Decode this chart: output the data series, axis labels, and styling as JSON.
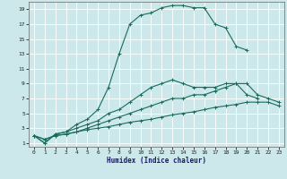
{
  "xlabel": "Humidex (Indice chaleur)",
  "bg_color": "#cce8ea",
  "line_color": "#1a6b5a",
  "grid_color": "#ffffff",
  "xlim": [
    -0.5,
    23.5
  ],
  "ylim": [
    0.5,
    20
  ],
  "xticks": [
    0,
    1,
    2,
    3,
    4,
    5,
    6,
    7,
    8,
    9,
    10,
    11,
    12,
    13,
    14,
    15,
    16,
    17,
    18,
    19,
    20,
    21,
    22,
    23
  ],
  "yticks": [
    1,
    3,
    5,
    7,
    9,
    11,
    13,
    15,
    17,
    19
  ],
  "curve1_x": [
    0,
    1,
    2,
    3,
    4,
    5,
    6,
    7,
    8,
    9,
    10,
    11,
    12,
    13,
    14,
    15,
    16,
    17,
    18,
    19,
    20
  ],
  "curve1_y": [
    2,
    1,
    2.2,
    2.5,
    3.5,
    4.2,
    5.5,
    8.5,
    13,
    17,
    18.2,
    18.5,
    19.2,
    19.5,
    19.5,
    19.2,
    19.2,
    17,
    16.5,
    14,
    13.5
  ],
  "curve2_x": [
    0,
    1,
    2,
    3,
    4,
    5,
    6,
    7,
    8,
    9,
    10,
    11,
    12,
    13,
    14,
    15,
    16,
    17,
    18,
    19,
    20,
    21
  ],
  "curve2_y": [
    2,
    1,
    2.2,
    2.5,
    3,
    3.5,
    4,
    5,
    5.5,
    6.5,
    7.5,
    8.5,
    9,
    9.5,
    9,
    8.5,
    8.5,
    8.5,
    9,
    9,
    7.5,
    7
  ],
  "curve3_x": [
    0,
    1,
    2,
    3,
    4,
    5,
    6,
    7,
    8,
    9,
    10,
    11,
    12,
    13,
    14,
    15,
    16,
    17,
    18,
    19,
    20,
    21,
    22,
    23
  ],
  "curve3_y": [
    2,
    1.5,
    2,
    2.2,
    2.5,
    3,
    3.5,
    4,
    4.5,
    5,
    5.5,
    6,
    6.5,
    7,
    7,
    7.5,
    7.5,
    8,
    8.5,
    9,
    9,
    7.5,
    7,
    6.5
  ],
  "curve4_x": [
    0,
    1,
    2,
    3,
    4,
    5,
    6,
    7,
    8,
    9,
    10,
    11,
    12,
    13,
    14,
    15,
    16,
    17,
    18,
    19,
    20,
    21,
    22,
    23
  ],
  "curve4_y": [
    2,
    1.5,
    2,
    2.2,
    2.5,
    2.8,
    3,
    3.2,
    3.5,
    3.8,
    4,
    4.2,
    4.5,
    4.8,
    5,
    5.2,
    5.5,
    5.8,
    6,
    6.2,
    6.5,
    6.5,
    6.5,
    6
  ]
}
